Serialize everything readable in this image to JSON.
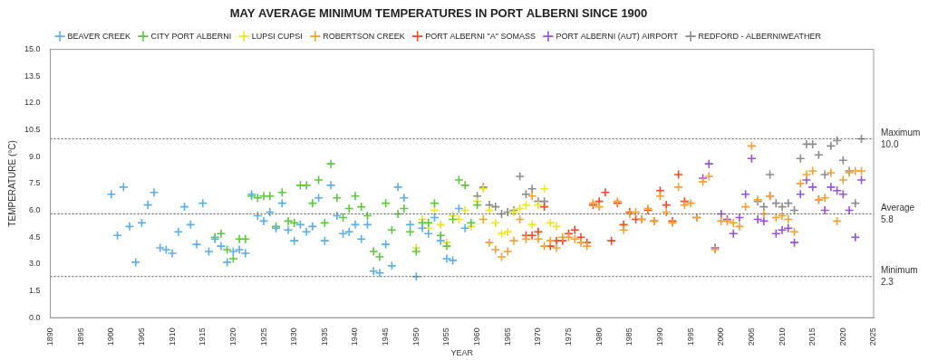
{
  "chart_data": {
    "type": "scatter",
    "title": "MAY AVERAGE MINIMUM TEMPERATURES IN PORT ALBERNI SINCE 1900",
    "x_label": "YEAR",
    "y_label": "TEMPERATURE (°C)",
    "xlim": [
      1890,
      2025
    ],
    "xticks": [
      1890,
      1895,
      1900,
      1905,
      1910,
      1915,
      1920,
      1925,
      1930,
      1935,
      1940,
      1945,
      1950,
      1955,
      1960,
      1965,
      1970,
      1975,
      1980,
      1985,
      1990,
      1995,
      2000,
      2005,
      2010,
      2015,
      2020,
      2025
    ],
    "ylim": [
      0,
      15
    ],
    "yticks": [
      {
        "value": 0,
        "label": "0.0"
      },
      1.5,
      {
        "value": 3,
        "label": "3.0"
      },
      4.5,
      {
        "value": 6,
        "label": "6.0"
      },
      7.5,
      {
        "value": 9,
        "label": "9.0"
      },
      10.5,
      {
        "value": 12,
        "label": "12.0"
      },
      13.5,
      {
        "value": 15,
        "label": "15.0"
      }
    ],
    "grid": false,
    "legend": "top",
    "marker": "cross",
    "annotations": [
      {
        "text": "Maximum",
        "y": 10.0,
        "value_label": "10.0"
      },
      {
        "text": "Average",
        "y": 5.8,
        "value_label": "5.8"
      },
      {
        "text": "Minimum",
        "y": 2.3,
        "value_label": "2.3"
      }
    ],
    "series": [
      {
        "name": "BEAVER CREEK",
        "color": "#5aaef0",
        "x": [
          1900,
          1901,
          1902,
          1903,
          1904,
          1905,
          1906,
          1907,
          1908,
          1909,
          1910,
          1911,
          1912,
          1913,
          1914,
          1915,
          1916,
          1917,
          1918,
          1919,
          1920,
          1921,
          1922,
          1923,
          1924,
          1925,
          1926,
          1927,
          1928,
          1929,
          1930,
          1931,
          1932,
          1933,
          1934,
          1935,
          1936,
          1937,
          1938,
          1939,
          1940,
          1941,
          1942,
          1943,
          1944,
          1945,
          1946,
          1947,
          1948,
          1949,
          1950,
          1951,
          1952,
          1953,
          1954,
          1955,
          1956,
          1957,
          1958
        ],
        "values": [
          6.9,
          4.6,
          7.3,
          5.1,
          3.1,
          5.3,
          6.3,
          7.0,
          3.9,
          3.8,
          3.6,
          4.8,
          6.2,
          5.2,
          4.1,
          6.4,
          3.7,
          4.4,
          4.0,
          3.1,
          3.7,
          3.8,
          3.6,
          6.9,
          5.7,
          5.4,
          5.9,
          5.0,
          6.4,
          4.9,
          4.3,
          5.2,
          4.8,
          5.1,
          6.7,
          4.3,
          7.4,
          5.7,
          4.7,
          4.8,
          5.2,
          4.4,
          5.2,
          2.6,
          2.5,
          4.1,
          2.9,
          7.3,
          6.7,
          5.2,
          2.3,
          5.0,
          4.7,
          5.6,
          4.3,
          3.3,
          3.2,
          6.1,
          5.0
        ]
      },
      {
        "name": "CITY PORT ALBERNI",
        "color": "#5cc93a",
        "x": [
          1917,
          1918,
          1919,
          1920,
          1921,
          1922,
          1923,
          1924,
          1925,
          1926,
          1927,
          1928,
          1929,
          1930,
          1931,
          1932,
          1933,
          1934,
          1935,
          1936,
          1937,
          1938,
          1939,
          1940,
          1941,
          1942,
          1943,
          1944,
          1945,
          1946,
          1947,
          1948,
          1949,
          1950,
          1951,
          1952,
          1953,
          1954,
          1955,
          1956,
          1957,
          1958,
          1959,
          1960
        ],
        "values": [
          4.5,
          4.7,
          3.8,
          3.3,
          4.4,
          4.4,
          6.8,
          6.7,
          6.8,
          6.8,
          5.1,
          7.0,
          5.4,
          5.3,
          7.4,
          7.4,
          6.4,
          7.7,
          5.3,
          8.6,
          6.7,
          5.6,
          6.1,
          6.8,
          6.2,
          5.7,
          3.7,
          3.4,
          6.4,
          4.9,
          5.8,
          6.1,
          4.8,
          3.7,
          5.3,
          5.3,
          6.4,
          4.6,
          4.0,
          5.5,
          7.7,
          7.4,
          5.3,
          6.3
        ]
      },
      {
        "name": "LUPSI CUPSI",
        "color": "#f2e02a",
        "x": [
          1950,
          1951,
          1952,
          1953,
          1954,
          1955,
          1956,
          1957,
          1958,
          1959,
          1960,
          1961,
          1962,
          1963,
          1964,
          1965,
          1966,
          1967,
          1968,
          1969,
          1970,
          1971,
          1972,
          1973
        ],
        "values": [
          3.9,
          5.5,
          5.0,
          6.0,
          5.2,
          4.2,
          5.7,
          5.5,
          6.0,
          5.1,
          6.5,
          7.2,
          6.0,
          5.3,
          4.7,
          4.8,
          5.9,
          6.1,
          6.3,
          5.2,
          6.3,
          7.2,
          5.3,
          5.1
        ]
      },
      {
        "name": "ROBERTSON CREEK",
        "color": "#f5a030",
        "x": [
          1961,
          1962,
          1963,
          1964,
          1965,
          1966,
          1967,
          1968,
          1969,
          1970,
          1971,
          1972,
          1973,
          1974,
          1975,
          1976,
          1977,
          1978,
          1979,
          1980,
          1983,
          1984,
          1985,
          1986,
          1987,
          1988,
          1989,
          1990,
          1991,
          1992,
          1993,
          1994,
          1995,
          1996,
          1997,
          1998,
          1999,
          2000,
          2001,
          2002,
          2003,
          2004,
          2005,
          2006,
          2007,
          2008,
          2009,
          2010,
          2011,
          2012,
          2013,
          2014,
          2015,
          2016,
          2017,
          2018,
          2019,
          2020,
          2021,
          2022,
          2023
        ],
        "values": [
          5.5,
          4.2,
          3.8,
          3.4,
          3.7,
          4.3,
          5.5,
          4.4,
          6.8,
          4.4,
          4.0,
          4.3,
          3.9,
          4.5,
          4.5,
          4.4,
          4.2,
          4.0,
          6.4,
          6.2,
          6.5,
          4.9,
          5.8,
          5.9,
          5.5,
          6.1,
          5.4,
          6.8,
          5.9,
          5.3,
          7.3,
          6.3,
          6.4,
          5.6,
          7.6,
          7.9,
          3.8,
          5.4,
          5.4,
          5.3,
          5.1,
          6.2,
          9.6,
          6.6,
          5.8,
          6.8,
          5.6,
          5.7,
          5.5,
          4.8,
          7.5,
          8.0,
          8.2,
          6.6,
          6.7,
          8.1,
          5.4,
          7.7,
          8.1,
          8.2,
          8.2
        ]
      },
      {
        "name": "PORT ALBERNI \"A\" SOMASS",
        "color": "#f04a24",
        "x": [
          1968,
          1969,
          1970,
          1971,
          1972,
          1973,
          1974,
          1975,
          1976,
          1977,
          1978,
          1979,
          1980,
          1981,
          1982,
          1983,
          1984,
          1985,
          1986,
          1987,
          1988,
          1989,
          1990,
          1991,
          1992,
          1993,
          1994
        ],
        "values": [
          4.6,
          4.6,
          4.8,
          6.2,
          4.0,
          4.3,
          4.3,
          4.7,
          4.9,
          4.5,
          4.2,
          6.3,
          6.5,
          7.0,
          4.3,
          6.4,
          5.2,
          5.9,
          5.5,
          5.5,
          6.0,
          5.4,
          7.1,
          6.3,
          5.4,
          8.0,
          6.5
        ]
      },
      {
        "name": "PORT ALBERNI (AUT) AIRPORT",
        "color": "#9a50d8",
        "x": [
          1996,
          1997,
          1998,
          1999,
          2000,
          2001,
          2002,
          2003,
          2004,
          2005,
          2006,
          2007,
          2008,
          2009,
          2010,
          2011,
          2012,
          2013,
          2014,
          2015,
          2016,
          2017,
          2018,
          2019,
          2020,
          2021,
          2022,
          2023
        ],
        "values": [
          5.6,
          7.8,
          8.6,
          3.9,
          5.8,
          5.5,
          4.7,
          5.6,
          6.9,
          8.9,
          5.5,
          5.4,
          6.8,
          4.7,
          4.9,
          5.0,
          4.2,
          6.9,
          7.7,
          7.3,
          6.6,
          6.0,
          7.3,
          7.1,
          6.9,
          6.0,
          4.5,
          7.7
        ]
      },
      {
        "name": "REDFORD - ALBERNIWEATHER",
        "color": "#8c8c8c",
        "x": [
          1960,
          1961,
          1962,
          1963,
          1964,
          1965,
          1966,
          1967,
          1968,
          1969,
          1970,
          1971,
          2006,
          2007,
          2008,
          2009,
          2010,
          2011,
          2012,
          2013,
          2014,
          2015,
          2016,
          2017,
          2018,
          2019,
          2020,
          2021,
          2022,
          2023
        ],
        "values": [
          6.8,
          7.3,
          6.3,
          6.2,
          5.8,
          5.9,
          6.0,
          7.9,
          6.9,
          7.2,
          6.5,
          6.5,
          6.5,
          6.2,
          8.0,
          6.4,
          6.2,
          6.4,
          6.0,
          8.9,
          9.7,
          9.7,
          9.1,
          8.0,
          9.6,
          9.9,
          8.8,
          8.2,
          6.4,
          10.0
        ]
      }
    ]
  }
}
